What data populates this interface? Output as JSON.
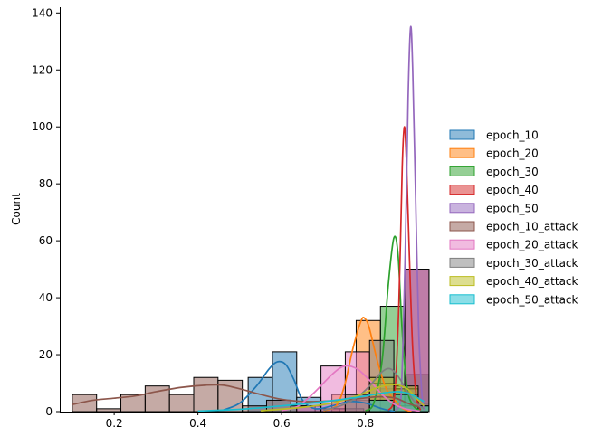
{
  "chart_data": {
    "type": "histogram",
    "title": "",
    "xlabel": "",
    "ylabel": "Count",
    "xlim": [
      0.07,
      0.95
    ],
    "ylim": [
      0,
      142
    ],
    "xticks": [
      0.2,
      0.4,
      0.6,
      0.8
    ],
    "xtick_labels": [
      "0.2",
      "0.4",
      "0.6",
      "0.8"
    ],
    "yticks": [
      0,
      20,
      40,
      60,
      80,
      100,
      120,
      140
    ],
    "ytick_labels": [
      "0",
      "20",
      "40",
      "60",
      "80",
      "100",
      "120",
      "140"
    ],
    "grid": false,
    "legend_position": "right",
    "bin_width": 0.058,
    "series": [
      {
        "name": "epoch_10",
        "color": "#1f77b4",
        "bins": [
          [
            0.52,
            0.578,
            12
          ],
          [
            0.578,
            0.636,
            21
          ],
          [
            0.636,
            0.694,
            5
          ],
          [
            0.694,
            0.752,
            3
          ],
          [
            0.752,
            0.81,
            4
          ]
        ],
        "kde": [
          [
            0.46,
            0.5
          ],
          [
            0.5,
            3
          ],
          [
            0.54,
            9
          ],
          [
            0.57,
            15
          ],
          [
            0.59,
            17.5
          ],
          [
            0.61,
            16.5
          ],
          [
            0.63,
            11
          ],
          [
            0.65,
            4
          ],
          [
            0.68,
            1
          ],
          [
            0.72,
            2
          ],
          [
            0.76,
            3.5
          ],
          [
            0.8,
            3
          ],
          [
            0.84,
            1
          ],
          [
            0.87,
            0
          ]
        ]
      },
      {
        "name": "epoch_20",
        "color": "#ff7f0e",
        "bins": [
          [
            0.72,
            0.778,
            6
          ],
          [
            0.778,
            0.836,
            32
          ],
          [
            0.836,
            0.894,
            8
          ]
        ],
        "kde": [
          [
            0.7,
            0.3
          ],
          [
            0.73,
            2
          ],
          [
            0.75,
            9
          ],
          [
            0.77,
            22
          ],
          [
            0.79,
            32
          ],
          [
            0.8,
            32.5
          ],
          [
            0.81,
            29
          ],
          [
            0.83,
            17
          ],
          [
            0.85,
            8
          ],
          [
            0.87,
            4
          ],
          [
            0.89,
            1
          ],
          [
            0.91,
            0
          ]
        ]
      },
      {
        "name": "epoch_30",
        "color": "#2ca02c",
        "bins": [
          [
            0.836,
            0.894,
            37
          ],
          [
            0.894,
            0.952,
            13
          ]
        ],
        "kde": [
          [
            0.8,
            0.3
          ],
          [
            0.82,
            3
          ],
          [
            0.84,
            18
          ],
          [
            0.855,
            45
          ],
          [
            0.868,
            61
          ],
          [
            0.878,
            55
          ],
          [
            0.888,
            28
          ],
          [
            0.9,
            8
          ],
          [
            0.915,
            2
          ],
          [
            0.93,
            0.5
          ]
        ]
      },
      {
        "name": "epoch_40",
        "color": "#d62728",
        "bins": [
          [
            0.894,
            0.952,
            50
          ]
        ],
        "kde": [
          [
            0.855,
            0.5
          ],
          [
            0.87,
            6
          ],
          [
            0.88,
            38
          ],
          [
            0.888,
            86
          ],
          [
            0.893,
            100
          ],
          [
            0.898,
            88
          ],
          [
            0.905,
            55
          ],
          [
            0.913,
            22
          ],
          [
            0.922,
            5
          ],
          [
            0.932,
            0.5
          ]
        ]
      },
      {
        "name": "epoch_50",
        "color": "#9467bd",
        "bins": [
          [
            0.894,
            0.952,
            50
          ]
        ],
        "kde": [
          [
            0.872,
            0.5
          ],
          [
            0.885,
            5
          ],
          [
            0.895,
            55
          ],
          [
            0.902,
            110
          ],
          [
            0.908,
            135
          ],
          [
            0.913,
            120
          ],
          [
            0.92,
            75
          ],
          [
            0.927,
            30
          ],
          [
            0.934,
            8
          ],
          [
            0.94,
            0.5
          ]
        ]
      },
      {
        "name": "epoch_10_attack",
        "color": "#8c564b",
        "bins": [
          [
            0.1,
            0.158,
            6
          ],
          [
            0.158,
            0.216,
            1
          ],
          [
            0.216,
            0.274,
            6
          ],
          [
            0.274,
            0.332,
            9
          ],
          [
            0.332,
            0.39,
            6
          ],
          [
            0.39,
            0.448,
            12
          ],
          [
            0.448,
            0.506,
            11
          ],
          [
            0.506,
            0.564,
            2
          ],
          [
            0.564,
            0.622,
            4
          ],
          [
            0.622,
            0.68,
            2
          ],
          [
            0.68,
            0.738,
            1
          ],
          [
            0.738,
            0.796,
            1
          ]
        ],
        "kde": [
          [
            0.1,
            2.5
          ],
          [
            0.15,
            4
          ],
          [
            0.2,
            4.7
          ],
          [
            0.25,
            5.5
          ],
          [
            0.3,
            7
          ],
          [
            0.36,
            8.5
          ],
          [
            0.42,
            9.3
          ],
          [
            0.46,
            9.3
          ],
          [
            0.5,
            8
          ],
          [
            0.55,
            6
          ],
          [
            0.6,
            4.3
          ],
          [
            0.66,
            3.5
          ],
          [
            0.72,
            3.8
          ],
          [
            0.78,
            4.5
          ],
          [
            0.83,
            5.2
          ],
          [
            0.87,
            4.8
          ],
          [
            0.9,
            3
          ],
          [
            0.93,
            1.5
          ]
        ]
      },
      {
        "name": "epoch_20_attack",
        "color": "#e377c2",
        "bins": [
          [
            0.636,
            0.694,
            2
          ],
          [
            0.694,
            0.752,
            16
          ],
          [
            0.752,
            0.81,
            21
          ],
          [
            0.81,
            0.868,
            10
          ],
          [
            0.868,
            0.926,
            2
          ]
        ],
        "kde": [
          [
            0.6,
            0.3
          ],
          [
            0.64,
            2
          ],
          [
            0.68,
            7
          ],
          [
            0.72,
            13
          ],
          [
            0.75,
            16
          ],
          [
            0.78,
            15
          ],
          [
            0.81,
            11
          ],
          [
            0.84,
            6
          ],
          [
            0.87,
            2.5
          ],
          [
            0.9,
            0.8
          ],
          [
            0.93,
            0.2
          ]
        ]
      },
      {
        "name": "epoch_30_attack",
        "color": "#7f7f7f",
        "bins": [
          [
            0.752,
            0.81,
            6
          ],
          [
            0.81,
            0.868,
            25
          ],
          [
            0.868,
            0.926,
            8
          ],
          [
            0.926,
            0.952,
            3
          ]
        ],
        "kde": [
          [
            0.7,
            0.5
          ],
          [
            0.74,
            2
          ],
          [
            0.78,
            5
          ],
          [
            0.81,
            9
          ],
          [
            0.84,
            14
          ],
          [
            0.86,
            15
          ],
          [
            0.88,
            12
          ],
          [
            0.9,
            7
          ],
          [
            0.92,
            3
          ],
          [
            0.94,
            1
          ]
        ]
      },
      {
        "name": "epoch_40_attack",
        "color": "#bcbd22",
        "bins": [
          [
            0.81,
            0.868,
            12
          ],
          [
            0.868,
            0.926,
            9
          ],
          [
            0.926,
            0.952,
            2
          ]
        ],
        "kde": [
          [
            0.55,
            0.3
          ],
          [
            0.65,
            1.5
          ],
          [
            0.72,
            3
          ],
          [
            0.78,
            5.5
          ],
          [
            0.83,
            8.5
          ],
          [
            0.87,
            9.5
          ],
          [
            0.9,
            8
          ],
          [
            0.92,
            5
          ],
          [
            0.94,
            2
          ]
        ]
      },
      {
        "name": "epoch_50_attack",
        "color": "#17becf",
        "bins": [
          [
            0.81,
            0.868,
            4
          ],
          [
            0.868,
            0.926,
            6
          ],
          [
            0.926,
            0.952,
            2
          ]
        ],
        "kde": [
          [
            0.4,
            0.2
          ],
          [
            0.5,
            0.8
          ],
          [
            0.6,
            2
          ],
          [
            0.7,
            3.5
          ],
          [
            0.78,
            5
          ],
          [
            0.84,
            6.5
          ],
          [
            0.88,
            7
          ],
          [
            0.91,
            6
          ],
          [
            0.94,
            3.5
          ]
        ]
      }
    ]
  }
}
